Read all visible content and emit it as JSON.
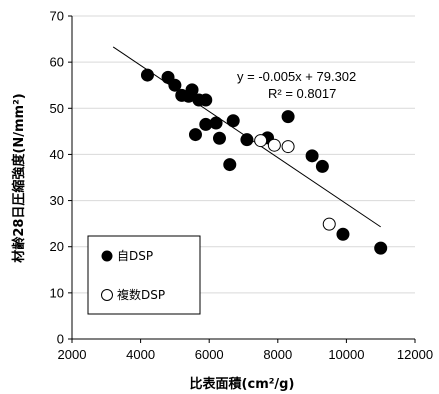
{
  "chart_data": {
    "type": "scatter",
    "xlabel": "比表面積(cm²/g)",
    "ylabel": "材齢28日圧縮強度(N/mm²)",
    "xlim": [
      2000,
      12000
    ],
    "ylim": [
      0,
      70
    ],
    "xticks": [
      2000,
      4000,
      6000,
      8000,
      10000,
      12000
    ],
    "yticks": [
      0,
      10,
      20,
      30,
      40,
      50,
      60,
      70
    ],
    "grid": "horizontal",
    "legend_position": "bottom-left",
    "series": [
      {
        "name": "自DSP",
        "marker": "filled-circle",
        "color": "#000000",
        "points": [
          [
            4200,
            57.2
          ],
          [
            4800,
            56.7
          ],
          [
            5000,
            55.0
          ],
          [
            5200,
            52.8
          ],
          [
            5400,
            52.6
          ],
          [
            5500,
            54.0
          ],
          [
            5700,
            51.8
          ],
          [
            5900,
            51.8
          ],
          [
            5600,
            44.3
          ],
          [
            5900,
            46.5
          ],
          [
            6200,
            46.8
          ],
          [
            6300,
            43.5
          ],
          [
            6700,
            47.3
          ],
          [
            6600,
            37.8
          ],
          [
            7100,
            43.2
          ],
          [
            7700,
            43.6
          ],
          [
            8300,
            48.2
          ],
          [
            9000,
            39.7
          ],
          [
            9300,
            37.4
          ],
          [
            9900,
            22.7
          ],
          [
            11000,
            19.7
          ]
        ]
      },
      {
        "name": "複数DSP",
        "marker": "open-circle",
        "color": "#000000",
        "points": [
          [
            7500,
            43.0
          ],
          [
            7900,
            42.0
          ],
          [
            8300,
            41.7
          ],
          [
            9500,
            24.9
          ]
        ]
      }
    ],
    "trendline": {
      "type": "linear",
      "slope": -0.005,
      "intercept": 79.302,
      "x_range": [
        3200,
        11000
      ],
      "equation": "y = -0.005x + 79.302",
      "r_squared": "R² = 0.8017"
    }
  }
}
